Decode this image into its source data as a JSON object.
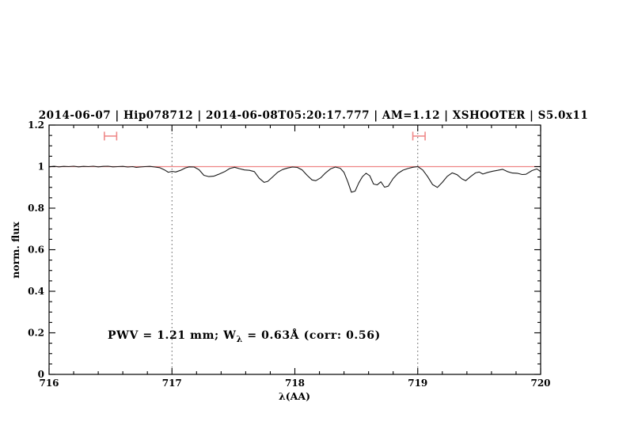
{
  "chart_data": {
    "type": "line",
    "title": "2014-06-07 | Hip078712 | 2014-06-08T05:20:17.777 | AM=1.12 | XSHOOTER | S5.0x11",
    "title_color": "#2222dd",
    "xlabel": "λ(AA)",
    "ylabel": "norm. flux",
    "xlim": [
      716,
      720
    ],
    "ylim": [
      0,
      1.2
    ],
    "x_major_ticks": [
      716,
      717,
      718,
      719,
      720
    ],
    "x_major_tick_labels": [
      "716",
      "717",
      "718",
      "719",
      "720"
    ],
    "x_minor_step": 0.2,
    "y_major_ticks": [
      0,
      0.2,
      0.4,
      0.6,
      0.8,
      1,
      1.2
    ],
    "y_major_tick_labels": [
      "0",
      "0.2",
      "0.4",
      "0.6",
      "0.8",
      "1",
      "1.2"
    ],
    "y_minor_step": 0.05,
    "grid_on": false,
    "legend": "none",
    "grid_vlines": {
      "x": [
        717,
        719
      ],
      "style": "dotted",
      "color": "#555555"
    },
    "reference_line": {
      "y": 1.0,
      "color": "#ef8383"
    },
    "range_markers": [
      {
        "x_start": 716.45,
        "x_end": 716.55,
        "y": 1.147,
        "color": "#ef8a8a"
      },
      {
        "x_start": 718.96,
        "x_end": 719.06,
        "y": 1.147,
        "color": "#ef8a8a"
      }
    ],
    "annotation": {
      "pre": "PWV = 1.21 mm; W",
      "sub": "λ",
      "post": " = 0.63Å (corr: 0.56)",
      "color": "#2222dd"
    },
    "series": [
      {
        "name": "normalized spectrum",
        "color": "#1a1a1a",
        "points": [
          [
            716.0,
            0.999
          ],
          [
            716.04,
            1.002
          ],
          [
            716.08,
            0.999
          ],
          [
            716.12,
            1.001
          ],
          [
            716.16,
            1.0
          ],
          [
            716.2,
            1.002
          ],
          [
            716.24,
            0.999
          ],
          [
            716.28,
            1.001
          ],
          [
            716.32,
            1.0
          ],
          [
            716.36,
            1.002
          ],
          [
            716.4,
            0.999
          ],
          [
            716.44,
            1.001
          ],
          [
            716.48,
            1.002
          ],
          [
            716.52,
            0.999
          ],
          [
            716.56,
            1.0
          ],
          [
            716.6,
            1.001
          ],
          [
            716.64,
            0.998
          ],
          [
            716.68,
            1.0
          ],
          [
            716.71,
            0.996
          ],
          [
            716.74,
            0.998
          ],
          [
            716.78,
            1.0
          ],
          [
            716.82,
            1.001
          ],
          [
            716.86,
            0.998
          ],
          [
            716.9,
            0.995
          ],
          [
            716.94,
            0.984
          ],
          [
            716.97,
            0.973
          ],
          [
            717.0,
            0.977
          ],
          [
            717.03,
            0.974
          ],
          [
            717.07,
            0.982
          ],
          [
            717.11,
            0.994
          ],
          [
            717.14,
            0.999
          ],
          [
            717.18,
            0.998
          ],
          [
            717.22,
            0.985
          ],
          [
            717.26,
            0.958
          ],
          [
            717.3,
            0.952
          ],
          [
            717.34,
            0.954
          ],
          [
            717.38,
            0.963
          ],
          [
            717.43,
            0.976
          ],
          [
            717.47,
            0.991
          ],
          [
            717.51,
            0.997
          ],
          [
            717.55,
            0.99
          ],
          [
            717.59,
            0.984
          ],
          [
            717.63,
            0.982
          ],
          [
            717.67,
            0.976
          ],
          [
            717.71,
            0.944
          ],
          [
            717.75,
            0.924
          ],
          [
            717.78,
            0.929
          ],
          [
            717.82,
            0.951
          ],
          [
            717.86,
            0.973
          ],
          [
            717.9,
            0.986
          ],
          [
            717.94,
            0.993
          ],
          [
            717.98,
            0.998
          ],
          [
            718.02,
            0.996
          ],
          [
            718.06,
            0.984
          ],
          [
            718.1,
            0.958
          ],
          [
            718.14,
            0.936
          ],
          [
            718.17,
            0.932
          ],
          [
            718.21,
            0.946
          ],
          [
            718.25,
            0.97
          ],
          [
            718.29,
            0.989
          ],
          [
            718.33,
            0.998
          ],
          [
            718.37,
            0.992
          ],
          [
            718.4,
            0.972
          ],
          [
            718.43,
            0.928
          ],
          [
            718.46,
            0.877
          ],
          [
            718.49,
            0.882
          ],
          [
            718.52,
            0.921
          ],
          [
            718.55,
            0.952
          ],
          [
            718.58,
            0.968
          ],
          [
            718.61,
            0.956
          ],
          [
            718.64,
            0.916
          ],
          [
            718.67,
            0.912
          ],
          [
            718.7,
            0.927
          ],
          [
            718.73,
            0.901
          ],
          [
            718.76,
            0.906
          ],
          [
            718.8,
            0.943
          ],
          [
            718.84,
            0.968
          ],
          [
            718.88,
            0.983
          ],
          [
            718.92,
            0.991
          ],
          [
            718.96,
            0.997
          ],
          [
            719.0,
            1.0
          ],
          [
            719.04,
            0.984
          ],
          [
            719.08,
            0.952
          ],
          [
            719.12,
            0.914
          ],
          [
            719.16,
            0.9
          ],
          [
            719.2,
            0.924
          ],
          [
            719.24,
            0.953
          ],
          [
            719.28,
            0.97
          ],
          [
            719.32,
            0.961
          ],
          [
            719.36,
            0.941
          ],
          [
            719.39,
            0.932
          ],
          [
            719.43,
            0.952
          ],
          [
            719.47,
            0.97
          ],
          [
            719.5,
            0.974
          ],
          [
            719.53,
            0.964
          ],
          [
            719.57,
            0.972
          ],
          [
            719.61,
            0.978
          ],
          [
            719.65,
            0.982
          ],
          [
            719.69,
            0.987
          ],
          [
            719.73,
            0.976
          ],
          [
            719.77,
            0.969
          ],
          [
            719.81,
            0.968
          ],
          [
            719.85,
            0.962
          ],
          [
            719.88,
            0.963
          ],
          [
            719.93,
            0.981
          ],
          [
            719.97,
            0.989
          ],
          [
            720.0,
            0.976
          ]
        ]
      }
    ]
  }
}
